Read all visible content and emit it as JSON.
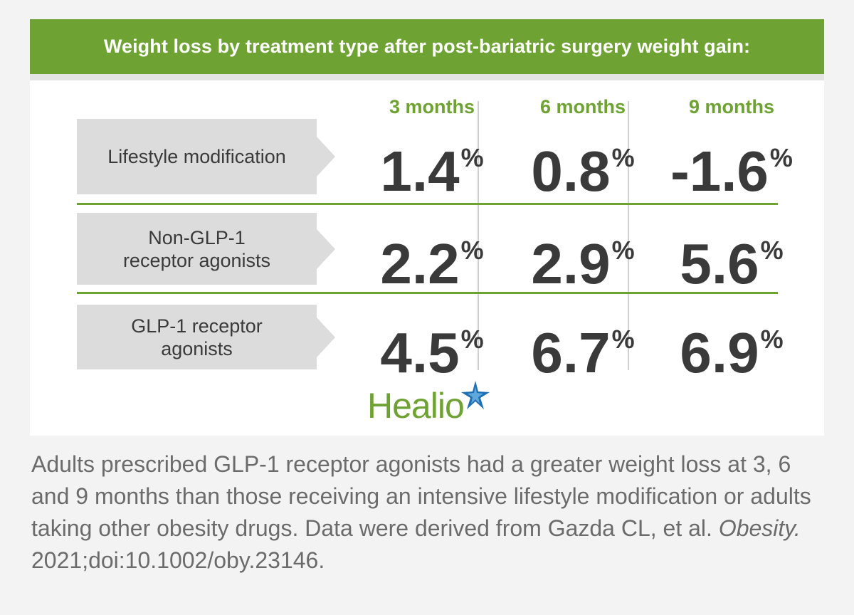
{
  "chart_data": {
    "type": "table",
    "title": "Weight loss by treatment type after post-bariatric surgery weight gain:",
    "columns": [
      "3 months",
      "6 months",
      "9 months"
    ],
    "unit": "%",
    "rows": [
      {
        "label_lines": [
          "Lifestyle modification"
        ],
        "values": [
          "1.4",
          "0.8",
          "-1.6"
        ]
      },
      {
        "label_lines": [
          "Non-GLP-1",
          "receptor agonists"
        ],
        "values": [
          "2.2",
          "2.9",
          "5.6"
        ]
      },
      {
        "label_lines": [
          "GLP-1 receptor",
          "agonists"
        ],
        "values": [
          "4.5",
          "6.7",
          "6.9"
        ]
      }
    ]
  },
  "logo": {
    "text": "Healio",
    "color": "#6ea232",
    "star_color": "#1f6fb5"
  },
  "caption": {
    "text": "Adults prescribed GLP-1 receptor agonists had a greater weight loss at 3, 6 and 9 months than those receiving an intensive lifestyle modification or adults taking other obesity drugs. Data were derived from Gazda CL, et al.",
    "journal": "Obesity.",
    "citation": "2021;doi:10.1002/oby.23146."
  },
  "colors": {
    "accent": "#6ea232",
    "label_bg": "#dcdcdc",
    "text": "#3a3a3a"
  }
}
